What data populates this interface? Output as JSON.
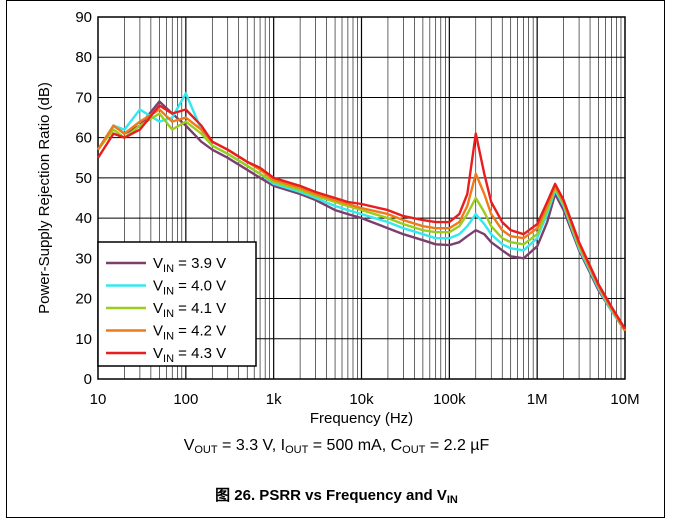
{
  "conditions": {
    "vout_sym": "V",
    "vout_sub": "OUT",
    "vout_val": " = 3.3 V, ",
    "iout_sym": "I",
    "iout_sub": "OUT",
    "iout_val": " = 500 mA, ",
    "cout_sym": "C",
    "cout_sub": "OUT",
    "cout_val": " = 2.2 µF"
  },
  "figure_title": {
    "text": "图 26. PSRR vs Frequency and V",
    "sub": "IN"
  },
  "chart_data": {
    "type": "line",
    "title": "",
    "xlabel": "Frequency (Hz)",
    "ylabel": "Power-Supply Rejection Ratio (dB)",
    "xscale": "log",
    "xlim": [
      10,
      10000000
    ],
    "ylim": [
      0,
      90
    ],
    "x_tick_labels": [
      "10",
      "100",
      "1k",
      "10k",
      "100k",
      "1M",
      "10M"
    ],
    "y_tick_labels": [
      "0",
      "10",
      "20",
      "30",
      "40",
      "50",
      "60",
      "70",
      "80",
      "90"
    ],
    "grid": true,
    "legend_position": "lower-left",
    "x": [
      10,
      15,
      20,
      30,
      50,
      70,
      100,
      150,
      200,
      300,
      500,
      700,
      1000,
      2000,
      3000,
      5000,
      7000,
      10000,
      20000,
      30000,
      50000,
      70000,
      100000,
      130000,
      160000,
      200000,
      250000,
      300000,
      400000,
      500000,
      700000,
      1000000,
      1300000,
      1600000,
      2000000,
      3000000,
      5000000,
      7000000,
      10000000
    ],
    "series": [
      {
        "name": "V_IN = 3.9 V",
        "label_main": "V",
        "label_sub": "IN",
        "label_rest": " = 3.9 V",
        "color": "#7B3F6E",
        "values": [
          57,
          63,
          61,
          63,
          69,
          66,
          63,
          59,
          57,
          55,
          52,
          50,
          48,
          46,
          44.5,
          42,
          41,
          40,
          37.5,
          36,
          34.5,
          33.5,
          33.3,
          34,
          35.5,
          37,
          36,
          34,
          32,
          30.5,
          30,
          33,
          39,
          46,
          42,
          32,
          22,
          17,
          12
        ]
      },
      {
        "name": "V_IN = 4.0 V",
        "label_main": "V",
        "label_sub": "IN",
        "label_rest": " = 4.0 V",
        "color": "#33E8F0",
        "values": [
          57,
          63,
          62,
          67,
          64,
          65,
          71,
          62,
          58,
          56,
          53,
          51,
          48.5,
          46.5,
          45,
          43,
          42,
          41,
          39,
          37.5,
          36,
          35,
          35,
          36,
          38,
          41,
          38.5,
          36,
          33.5,
          32.5,
          32,
          35,
          41,
          47,
          43,
          32.5,
          22.5,
          17,
          12
        ]
      },
      {
        "name": "V_IN = 4.1 V",
        "label_main": "V",
        "label_sub": "IN",
        "label_rest": " = 4.1 V",
        "color": "#9ACD1E",
        "values": [
          57,
          62,
          60,
          63,
          66,
          62,
          64,
          61,
          58,
          56,
          53,
          51,
          49,
          47,
          45.5,
          44,
          43,
          42,
          40,
          38.5,
          37,
          36.5,
          36.5,
          38,
          41,
          45,
          41.5,
          38,
          35,
          34,
          33.5,
          36,
          42,
          47.5,
          43.5,
          33,
          23,
          17.5,
          12
        ]
      },
      {
        "name": "V_IN = 4.2 V",
        "label_main": "V",
        "label_sub": "IN",
        "label_rest": " = 4.2 V",
        "color": "#F07A1A",
        "values": [
          57,
          63,
          61,
          64,
          67,
          64,
          65,
          62,
          59,
          57,
          54,
          52,
          49.5,
          47.5,
          46,
          44.5,
          43.5,
          42.5,
          41,
          39.5,
          38,
          37.5,
          37.5,
          39,
          43,
          51,
          46,
          41,
          37,
          35.5,
          35,
          37.5,
          43,
          48,
          44,
          33.5,
          23,
          17.5,
          12
        ]
      },
      {
        "name": "V_IN = 4.3 V",
        "label_main": "V",
        "label_sub": "IN",
        "label_rest": " = 4.3 V",
        "color": "#E81E1E",
        "values": [
          55,
          61,
          60,
          62,
          68,
          66,
          67,
          63,
          59,
          57,
          54,
          52.5,
          50,
          48,
          46.5,
          45,
          44,
          43.5,
          42,
          40.5,
          39.5,
          39,
          39,
          41,
          46,
          61,
          51,
          44,
          39,
          37,
          36,
          38.5,
          44,
          48.5,
          44.5,
          34,
          23.5,
          18,
          12.5
        ]
      }
    ]
  }
}
